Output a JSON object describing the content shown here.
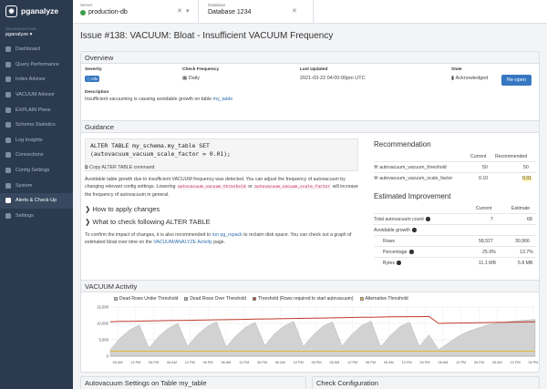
{
  "app": {
    "name": "pganalyze"
  },
  "sidebar": {
    "org_label": "ORGANIZATION",
    "org_name": "pganalyze",
    "items": [
      {
        "label": "Dashboard",
        "active": false
      },
      {
        "label": "Query Performance",
        "active": false
      },
      {
        "label": "Index Advisor",
        "active": false
      },
      {
        "label": "VACUUM Advisor",
        "active": false
      },
      {
        "label": "EXPLAIN Plans",
        "active": false
      },
      {
        "label": "Schema Statistics",
        "active": false
      },
      {
        "label": "Log Insights",
        "active": false
      },
      {
        "label": "Connections",
        "active": false
      },
      {
        "label": "Config Settings",
        "active": false
      },
      {
        "label": "System",
        "active": false
      },
      {
        "label": "Alerts & Check-Up",
        "active": true
      },
      {
        "label": "Settings",
        "active": false
      }
    ]
  },
  "topbar": {
    "server_label": "Server",
    "server_value": "production-db",
    "database_label": "Database",
    "database_value": "Database 1234"
  },
  "page": {
    "title": "Issue #138: VACUUM: Bloat - Insufficient VACUUM Frequency"
  },
  "overview": {
    "heading": "Overview",
    "severity_label": "Severity",
    "severity_value": "Info",
    "frequency_label": "Check Frequency",
    "frequency_value": "Daily",
    "updated_label": "Last Updated",
    "updated_value": "2021-03-22 04:00:00pm UTC",
    "state_label": "State",
    "state_value": "Acknowledged",
    "reopen_label": "Re-open",
    "description_label": "Description",
    "description_text": "Insufficient vacuuming is causing avoidable growth on table ",
    "description_table": "my_table"
  },
  "guidance": {
    "heading": "Guidance",
    "code_line1": "ALTER TABLE my_schema.my_table SET",
    "code_line2": "(autovacuum_vacuum_scale_factor = 0.01);",
    "copy_label": "Copy ALTER TABLE command",
    "para1_a": "Avoidable table growth due to insufficient VACUUM frequency was detected. You can adjust the frequency of",
    "para1_b": "autovacuum by changing relevant config settings. Lowering",
    "para1_code1": "autovacuum_vacuum_threshold",
    "para1_or": "or",
    "para1_code2": "autovacuum_vacuum_scale_factor",
    "para1_c": "will increase the frequency of autovacuum in general.",
    "how_apply": "How to apply changes",
    "what_check": "What to check following ALTER TABLE",
    "para2_a": "To confirm the impact of changes, it is also recommended to",
    "para2_link1": "run pg_repack",
    "para2_b": "to reclaim disk space. You can check",
    "para2_c": "out a graph of estimated bloat over time on the",
    "para2_link2": "VACUUM/ANALYZE Activity",
    "para2_d": "page."
  },
  "recommendation": {
    "heading": "Recommendation",
    "col_current": "Current",
    "col_recommended": "Recommended",
    "rows": [
      {
        "name": "autovacuum_vacuum_threshold",
        "current": "50",
        "recommended": "50"
      },
      {
        "name": "autovacuum_vacuum_scale_factor",
        "current": "0.10",
        "recommended": "0.01"
      }
    ]
  },
  "improvement": {
    "heading": "Estimated Improvement",
    "col_current": "Current",
    "col_estimate": "Estimate",
    "total_label": "Total autovacuum count",
    "total_current": "7",
    "total_estimate": "68",
    "growth_label": "Avoidable growth",
    "rows_label": "Rows",
    "rows_current": "58,527",
    "rows_estimate": "30,966",
    "pct_label": "Percentage",
    "pct_current": "25.9%",
    "pct_estimate": "13.7%",
    "bytes_label": "Bytes",
    "bytes_current": "11.1 MB",
    "bytes_estimate": "5.8 MB"
  },
  "activity": {
    "heading": "VACUUM Activity",
    "legend": [
      {
        "label": "Dead Rows Under Threshold",
        "color": "#c9c9c9"
      },
      {
        "label": "Dead Rows Over Threshold",
        "color": "#b0b0b0"
      },
      {
        "label": "Threshold (Rows required to start autovacuum)",
        "color": "#c0392b"
      },
      {
        "label": "Alternative Threshold",
        "color": "#e0b82e"
      }
    ]
  },
  "chart_data": {
    "type": "area",
    "yticks": [
      "15,000",
      "10,000",
      "5,000",
      "0"
    ],
    "ylim": [
      0,
      15000
    ],
    "xticks": [
      "06 AM",
      "12 PM",
      "06 PM",
      "06 AM",
      "12 PM",
      "06 PM",
      "06 AM",
      "12 PM",
      "06 PM",
      "06 AM",
      "12 PM",
      "06 PM",
      "06 AM",
      "12 PM",
      "06 PM",
      "06 AM",
      "12 PM",
      "06 PM",
      "06 AM",
      "12 PM",
      "06 PM",
      "06 AM",
      "12 PM",
      "06 PM"
    ],
    "series": [
      {
        "name": "Dead Rows Under Threshold",
        "values": [
          2000,
          5500,
          8000,
          9500,
          2500,
          6000,
          8500,
          10000,
          3000,
          6500,
          9000,
          10500,
          2800,
          6200,
          8800,
          10300,
          3200,
          6800,
          9200,
          10600,
          3000,
          6400,
          9100,
          10500,
          3100,
          6600,
          9300,
          10700,
          2900,
          6300,
          9000,
          10400,
          3000,
          6500,
          2000,
          4000,
          6000,
          7500,
          8500,
          9500,
          10000,
          10500,
          10800,
          11000,
          11200
        ]
      },
      {
        "name": "Threshold (Rows required to start autovacuum)",
        "values": [
          10500,
          10600,
          10650,
          10700,
          10750,
          10800,
          10850,
          10900,
          10950,
          11000,
          11050,
          11100,
          11150,
          11200,
          11250,
          11300,
          11350,
          11400,
          11450,
          11500,
          11550,
          11600,
          11650,
          11700,
          11750,
          11800,
          11850,
          11900,
          11950,
          12000,
          12000,
          12050,
          12050,
          12100,
          10000,
          10050,
          10100,
          10150,
          10200,
          10250,
          10300,
          10350,
          10400,
          10450,
          10500
        ]
      },
      {
        "name": "Alternative Threshold",
        "values": [
          1500,
          1500,
          1500,
          1500,
          1500,
          1500,
          1500,
          1500,
          1500,
          1500,
          1500,
          1500,
          1500,
          1500,
          1500,
          1500,
          1500,
          1500,
          1500,
          1500,
          1500,
          1500,
          1500,
          1500,
          1500,
          1500,
          1500,
          1500,
          1500,
          1500,
          1500,
          1500,
          1500,
          1500,
          1500,
          1500,
          1500,
          1500,
          1500,
          1500,
          1500,
          1500,
          1500,
          1500,
          1500
        ]
      }
    ]
  },
  "bottom": {
    "left_heading": "Autovacuum Settings on Table my_table",
    "right_heading": "Check Configuration"
  }
}
